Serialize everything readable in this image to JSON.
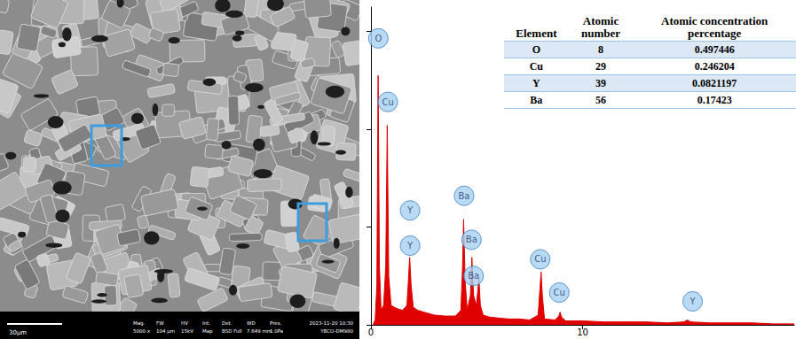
{
  "sem_image": {
    "scale_bar": "30µm",
    "info": [
      {
        "label": "Mag.",
        "value": "5000 x"
      },
      {
        "label": "FW",
        "value": "104 µm"
      },
      {
        "label": "HV",
        "value": "15kV"
      },
      {
        "label": "Int.",
        "value": "Map"
      },
      {
        "label": "Det.",
        "value": "BSD Full"
      },
      {
        "label": "WD",
        "value": "7.649 mm"
      },
      {
        "label": "Pres.",
        "value": "1.0Pa"
      }
    ],
    "timestamp": "2023-11-20 10:30",
    "sample": "YBCO-DM980"
  },
  "chart_data": {
    "type": "area",
    "color": "#e00000",
    "x": [
      0.1,
      0.2,
      0.28,
      0.34,
      0.4,
      0.48,
      0.6,
      0.7,
      0.77,
      0.84,
      0.95,
      1.1,
      1.3,
      1.5,
      1.7,
      1.77,
      1.83,
      1.9,
      2.0,
      2.2,
      2.5,
      3.0,
      3.5,
      4.0,
      4.25,
      4.33,
      4.38,
      4.45,
      4.55,
      4.7,
      4.77,
      4.85,
      4.98,
      5.05,
      5.1,
      5.17,
      5.3,
      5.6,
      6.0,
      6.5,
      7.0,
      7.5,
      7.9,
      7.98,
      8.04,
      8.1,
      8.2,
      8.7,
      8.88,
      8.94,
      9.0,
      9.2,
      10,
      11,
      12,
      13,
      14,
      14.8,
      14.95,
      15.1,
      16,
      17,
      18,
      19,
      20
    ],
    "values": [
      0.0,
      0.05,
      0.4,
      2.55,
      0.6,
      0.15,
      0.2,
      0.6,
      2.04,
      0.5,
      0.2,
      0.18,
      0.16,
      0.15,
      0.2,
      0.45,
      0.69,
      0.4,
      0.18,
      0.15,
      0.13,
      0.1,
      0.09,
      0.09,
      0.15,
      0.6,
      1.08,
      0.45,
      0.15,
      0.3,
      0.69,
      0.3,
      0.2,
      0.35,
      0.48,
      0.2,
      0.1,
      0.08,
      0.07,
      0.06,
      0.06,
      0.05,
      0.1,
      0.35,
      0.54,
      0.3,
      0.06,
      0.05,
      0.09,
      0.13,
      0.08,
      0.04,
      0.04,
      0.03,
      0.03,
      0.03,
      0.02,
      0.03,
      0.05,
      0.03,
      0.02,
      0.02,
      0.02,
      0.01,
      0.01
    ],
    "xlim": [
      0,
      20
    ],
    "xticks": [
      0,
      10
    ],
    "ylim": [
      0,
      3.25
    ],
    "yticks": [
      0,
      1,
      2,
      3
    ],
    "tick_labels": "x",
    "grid": false,
    "annotations": [
      {
        "text": "O",
        "x": 0.35,
        "y": 2.93
      },
      {
        "text": "Cu",
        "x": 0.8,
        "y": 2.28
      },
      {
        "text": "Y",
        "x": 1.85,
        "y": 1.17
      },
      {
        "text": "Y",
        "x": 1.85,
        "y": 0.81
      },
      {
        "text": "Ba",
        "x": 4.4,
        "y": 1.32
      },
      {
        "text": "Ba",
        "x": 4.75,
        "y": 0.87
      },
      {
        "text": "Ba",
        "x": 4.85,
        "y": 0.5
      },
      {
        "text": "Cu",
        "x": 8.0,
        "y": 0.67
      },
      {
        "text": "Cu",
        "x": 8.9,
        "y": 0.33
      },
      {
        "text": "Y",
        "x": 15.2,
        "y": 0.24
      }
    ],
    "table": {
      "header": [
        "Element",
        "Atomic number",
        "Atomic concentration percentage"
      ],
      "rows": [
        [
          "O",
          8,
          0.497446
        ],
        [
          "Cu",
          29,
          0.246204
        ],
        [
          "Y",
          39,
          0.0821197
        ],
        [
          "Ba",
          56,
          0.17423
        ]
      ]
    }
  }
}
